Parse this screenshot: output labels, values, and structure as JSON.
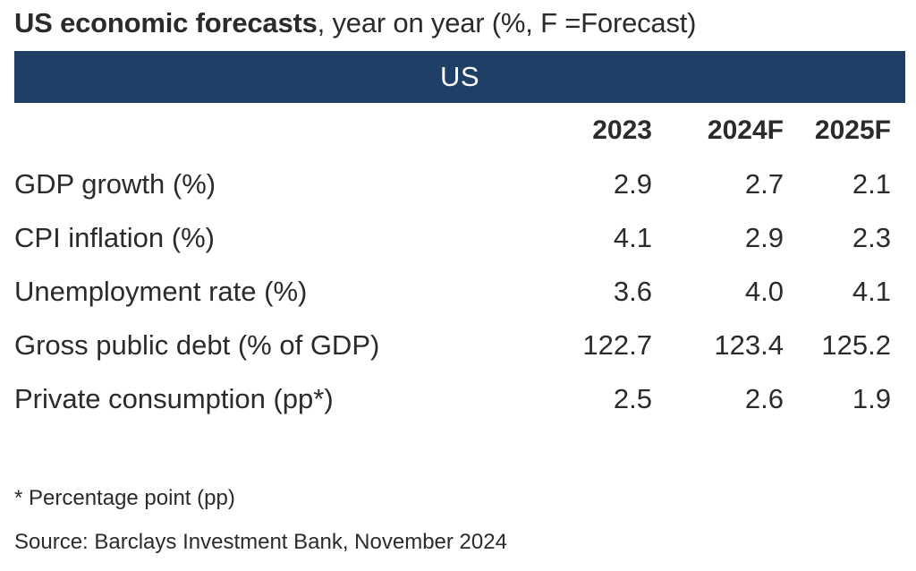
{
  "title": {
    "bold": "US economic forecasts",
    "rest": ", year on year (%, F =Forecast)"
  },
  "banner": "US",
  "table": {
    "columns": [
      "2023",
      "2024F",
      "2025F"
    ],
    "rows": [
      {
        "label": "GDP growth (%)",
        "values": [
          "2.9",
          "2.7",
          "2.1"
        ]
      },
      {
        "label": "CPI inflation (%)",
        "values": [
          "4.1",
          "2.9",
          "2.3"
        ]
      },
      {
        "label": "Unemployment rate (%)",
        "values": [
          "3.6",
          "4.0",
          "4.1"
        ]
      },
      {
        "label": "Gross public debt (% of GDP)",
        "values": [
          "122.7",
          "123.4",
          "125.2"
        ]
      },
      {
        "label": "Private consumption (pp*)",
        "values": [
          "2.5",
          "2.6",
          "1.9"
        ]
      }
    ]
  },
  "footnote": "* Percentage point (pp)",
  "source": "Source: Barclays Investment Bank, November 2024",
  "colors": {
    "banner_background": "#1f3f66",
    "banner_text": "#ffffff",
    "text": "#2b2b2b"
  }
}
